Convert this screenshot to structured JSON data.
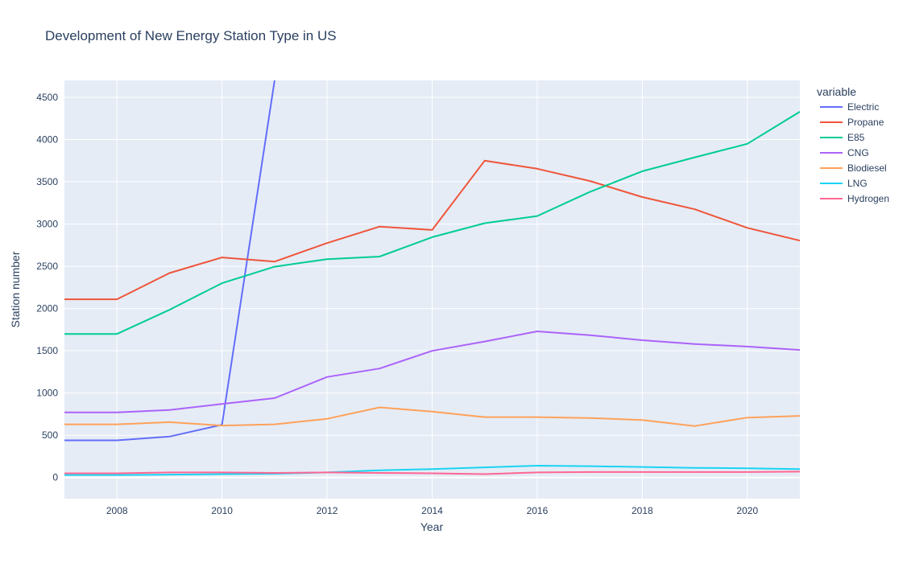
{
  "chart_data": {
    "type": "line",
    "title": "Development of New Energy Station Type in US",
    "xlabel": "Year",
    "ylabel": "Station number",
    "xlim": [
      2007,
      2021
    ],
    "ylim": [
      -250,
      4700
    ],
    "xticks": [
      2008,
      2010,
      2012,
      2014,
      2016,
      2018,
      2020
    ],
    "yticks": [
      0,
      500,
      1000,
      1500,
      2000,
      2500,
      3000,
      3500,
      4000,
      4500
    ],
    "legend_title": "variable",
    "legend_position": "right",
    "grid": true,
    "x": [
      2007,
      2008,
      2009,
      2010,
      2011,
      2012,
      2013,
      2014,
      2015,
      2016,
      2017,
      2018,
      2019,
      2020,
      2021
    ],
    "series": [
      {
        "name": "Electric",
        "color": "#636efa",
        "values": [
          440,
          440,
          485,
          625,
          4700,
          null,
          null,
          null,
          null,
          null,
          null,
          null,
          null,
          null,
          null
        ]
      },
      {
        "name": "Propane",
        "color": "#ef553b",
        "values": [
          2110,
          2110,
          2420,
          2605,
          2555,
          2775,
          2970,
          2930,
          3750,
          3655,
          3510,
          3320,
          3175,
          2955,
          2805
        ]
      },
      {
        "name": "E85",
        "color": "#00cc96",
        "values": [
          1700,
          1700,
          1985,
          2300,
          2495,
          2585,
          2615,
          2845,
          3010,
          3095,
          3380,
          3625,
          3790,
          3950,
          4330
        ]
      },
      {
        "name": "CNG",
        "color": "#ab63fa",
        "values": [
          770,
          770,
          800,
          870,
          940,
          1190,
          1290,
          1500,
          1610,
          1730,
          1685,
          1625,
          1580,
          1550,
          1510
        ]
      },
      {
        "name": "Biodiesel",
        "color": "#ffa15a",
        "values": [
          630,
          630,
          655,
          615,
          630,
          695,
          830,
          780,
          715,
          715,
          705,
          680,
          610,
          710,
          730
        ]
      },
      {
        "name": "LNG",
        "color": "#19d3f3",
        "values": [
          30,
          30,
          35,
          40,
          45,
          60,
          85,
          100,
          120,
          140,
          135,
          125,
          115,
          110,
          100
        ]
      },
      {
        "name": "Hydrogen",
        "color": "#ff6692",
        "values": [
          50,
          50,
          60,
          60,
          55,
          60,
          55,
          50,
          40,
          60,
          65,
          65,
          65,
          65,
          70
        ]
      }
    ]
  }
}
